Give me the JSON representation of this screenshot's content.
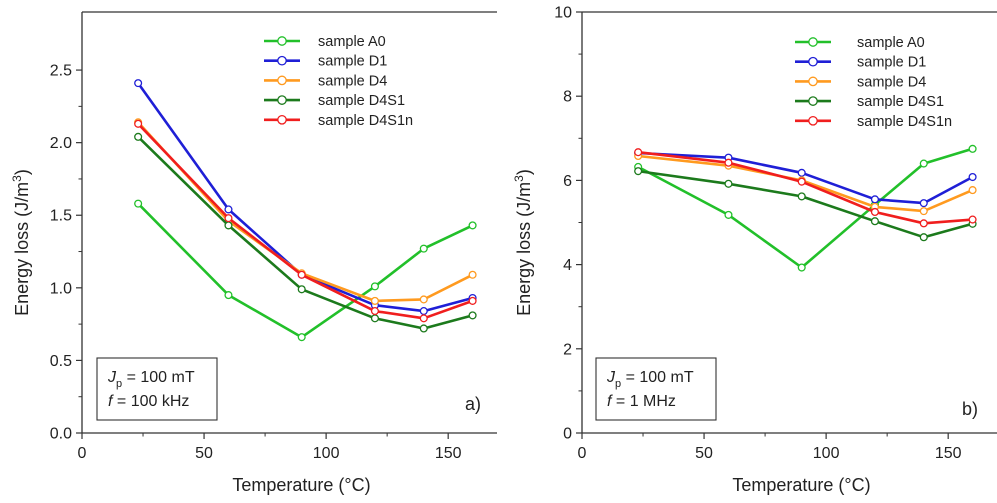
{
  "chart_data": [
    {
      "type": "line",
      "panel_label": "a)",
      "xlabel": "Temperature (°C)",
      "ylabel": {
        "main": "Energy loss (J/m",
        "sup": "3",
        "end": ")"
      },
      "xlim": [
        0,
        170
      ],
      "ylim": [
        0,
        2.9
      ],
      "xticks": [
        0,
        50,
        100,
        150
      ],
      "yticks": [
        0.0,
        0.5,
        1.0,
        1.5,
        2.0,
        2.5
      ],
      "ytick_decimals": 1,
      "grid": false,
      "legend_position": "top-right",
      "conditions": [
        {
          "italic": "J",
          "sub": "p",
          "rest": " = 100 mT"
        },
        {
          "italic": "f",
          "sub": "",
          "rest": " = 100 kHz"
        }
      ],
      "x": [
        23,
        60,
        90,
        120,
        140,
        160
      ],
      "series": [
        {
          "name": "sample A0",
          "color": "#22c02a",
          "values": [
            1.58,
            0.95,
            0.66,
            1.01,
            1.27,
            1.43
          ]
        },
        {
          "name": "sample D1",
          "color": "#1f1fd6",
          "values": [
            2.41,
            1.54,
            1.09,
            0.88,
            0.84,
            0.93
          ]
        },
        {
          "name": "sample D4",
          "color": "#ff9a1f",
          "values": [
            2.14,
            1.46,
            1.1,
            0.91,
            0.92,
            1.09
          ]
        },
        {
          "name": "sample D4S1",
          "color": "#1c7a1c",
          "values": [
            2.04,
            1.43,
            0.99,
            0.79,
            0.72,
            0.81
          ]
        },
        {
          "name": "sample D4S1n",
          "color": "#f01e1e",
          "values": [
            2.13,
            1.48,
            1.09,
            0.84,
            0.79,
            0.91
          ]
        }
      ]
    },
    {
      "type": "line",
      "panel_label": "b)",
      "xlabel": "Temperature (°C)",
      "ylabel": {
        "main": "Energy loss (J/m",
        "sup": "3",
        "end": ")"
      },
      "xlim": [
        0,
        170
      ],
      "ylim": [
        0,
        10
      ],
      "xticks": [
        0,
        50,
        100,
        150
      ],
      "yticks": [
        0,
        2,
        4,
        6,
        8,
        10
      ],
      "ytick_decimals": 0,
      "grid": false,
      "legend_position": "top-right",
      "conditions": [
        {
          "italic": "J",
          "sub": "p",
          "rest": " = 100 mT"
        },
        {
          "italic": "f",
          "sub": "",
          "rest": " = 1 MHz"
        }
      ],
      "x": [
        23,
        60,
        90,
        120,
        140,
        160
      ],
      "series": [
        {
          "name": "sample A0",
          "color": "#22c02a",
          "values": [
            6.32,
            5.18,
            3.93,
            5.42,
            6.4,
            6.75
          ]
        },
        {
          "name": "sample D1",
          "color": "#1f1fd6",
          "values": [
            6.65,
            6.54,
            6.18,
            5.55,
            5.46,
            6.08
          ]
        },
        {
          "name": "sample D4",
          "color": "#ff9a1f",
          "values": [
            6.58,
            6.35,
            6.0,
            5.37,
            5.27,
            5.77
          ]
        },
        {
          "name": "sample D4S1",
          "color": "#1c7a1c",
          "values": [
            6.22,
            5.92,
            5.62,
            5.03,
            4.65,
            4.97
          ]
        },
        {
          "name": "sample D4S1n",
          "color": "#f01e1e",
          "values": [
            6.67,
            6.42,
            5.97,
            5.25,
            4.98,
            5.07
          ]
        }
      ]
    }
  ]
}
